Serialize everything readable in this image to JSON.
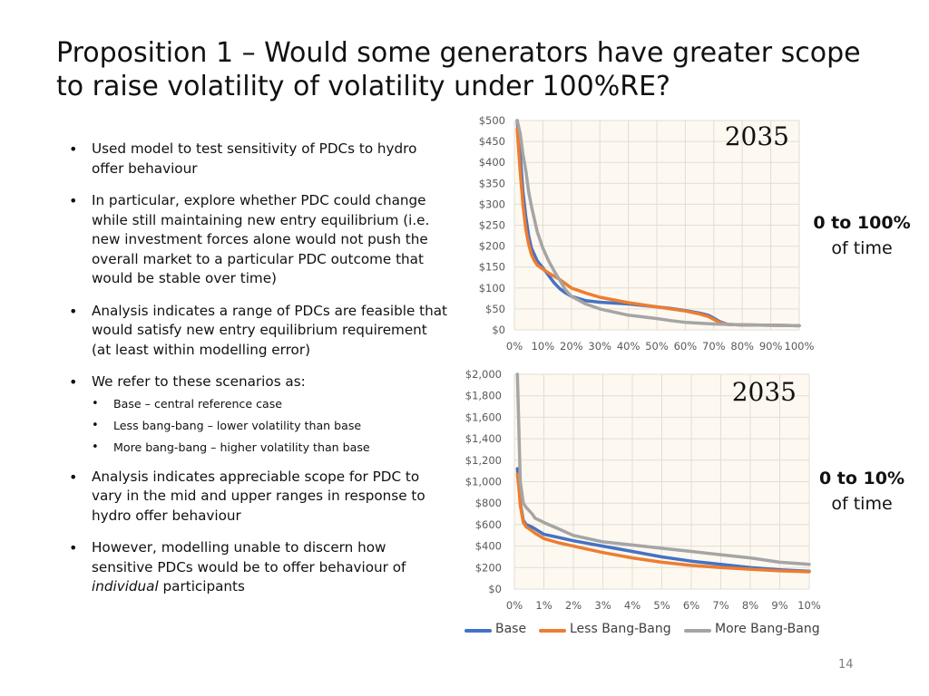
{
  "slide": {
    "title": "Proposition 1 – Would some generators have greater scope to raise volatility of volatility under 100%RE?",
    "bullets": {
      "b1": "Used model to test sensitivity of PDCs to hydro offer behaviour",
      "b2": "In particular, explore whether PDC could change while still maintaining new entry equilibrium (i.e. new investment forces alone would not push the overall market to a particular PDC outcome that would be stable over time)",
      "b3": "Analysis indicates a range of PDCs are feasible that would satisfy new entry equilibrium requirement (at least within modelling error)",
      "b4": "We refer to these scenarios as:",
      "b4_sub1": "Base – central reference case",
      "b4_sub2": "Less bang-bang – lower volatility than base",
      "b4_sub3": "More bang-bang – higher volatility than base",
      "b5": "Analysis indicates appreciable scope for PDC to vary in the mid and upper ranges in response to hydro offer behaviour",
      "b6_pre": "However, modelling unable to discern how sensitive PDCs would be to offer behaviour of ",
      "b6_em": "individual",
      "b6_post": " participants"
    },
    "side_label_top": {
      "bold": "0 to 100%",
      "rest": "of time"
    },
    "side_label_bottom": {
      "bold": "0 to 10%",
      "rest": "of time"
    },
    "page_number": "14",
    "legend": [
      "Base",
      "Less Bang-Bang",
      "More Bang-Bang"
    ]
  },
  "colors": {
    "base": "#4472C4",
    "less_bang_bang": "#ED7D31",
    "more_bang_bang": "#A5A5A5",
    "plot_bg": "#FDF8F0",
    "grid": "#E2DED6",
    "tick_text": "#595959"
  },
  "chart_data": [
    {
      "type": "line",
      "year_label": "2035",
      "x_unit": "% of time",
      "xlim": [
        0,
        100
      ],
      "ylim": [
        0,
        500
      ],
      "x_ticks": [
        0,
        10,
        20,
        30,
        40,
        50,
        60,
        70,
        80,
        90,
        100
      ],
      "x_tick_labels": [
        "0%",
        "10%",
        "20%",
        "30%",
        "40%",
        "50%",
        "60%",
        "70%",
        "80%",
        "90%",
        "100%"
      ],
      "y_ticks": [
        0,
        50,
        100,
        150,
        200,
        250,
        300,
        350,
        400,
        450,
        500
      ],
      "y_tick_labels": [
        "$0",
        "$50",
        "$100",
        "$150",
        "$200",
        "$250",
        "$300",
        "$350",
        "$400",
        "$450",
        "$500"
      ],
      "grid": true,
      "legend_position": "bottom",
      "series": [
        {
          "name": "Base",
          "x": [
            1,
            2,
            3,
            4,
            5,
            6,
            8,
            10,
            12,
            14,
            16,
            18,
            20,
            25,
            30,
            40,
            50,
            55,
            60,
            65,
            68,
            70,
            72,
            74,
            75,
            80,
            90,
            100
          ],
          "y": [
            500,
            420,
            330,
            270,
            225,
            195,
            165,
            148,
            130,
            112,
            98,
            88,
            80,
            70,
            66,
            62,
            55,
            51,
            46,
            40,
            35,
            28,
            20,
            15,
            13,
            12,
            11,
            10
          ]
        },
        {
          "name": "Less Bang-Bang",
          "x": [
            1,
            2,
            3,
            4,
            5,
            6,
            7,
            8,
            10,
            12,
            14,
            16,
            18,
            20,
            25,
            30,
            40,
            50,
            55,
            60,
            65,
            68,
            70,
            72,
            74,
            75,
            80,
            90,
            100
          ],
          "y": [
            480,
            380,
            300,
            240,
            205,
            180,
            165,
            155,
            145,
            136,
            128,
            120,
            110,
            100,
            88,
            78,
            65,
            55,
            50,
            45,
            38,
            32,
            25,
            18,
            14,
            13,
            12,
            11,
            10
          ]
        },
        {
          "name": "More Bang-Bang",
          "x": [
            1,
            2,
            3,
            4,
            5,
            6,
            7,
            8,
            10,
            12,
            14,
            16,
            18,
            20,
            25,
            30,
            40,
            50,
            55,
            60,
            65,
            70,
            75,
            80,
            90,
            100
          ],
          "y": [
            500,
            470,
            420,
            380,
            330,
            295,
            265,
            235,
            195,
            165,
            140,
            118,
            95,
            80,
            62,
            50,
            35,
            27,
            22,
            18,
            16,
            14,
            13,
            12,
            11,
            10
          ]
        }
      ]
    },
    {
      "type": "line",
      "year_label": "2035",
      "x_unit": "% of time",
      "xlim": [
        0,
        10
      ],
      "ylim": [
        0,
        2000
      ],
      "x_ticks": [
        0,
        1,
        2,
        3,
        4,
        5,
        6,
        7,
        8,
        9,
        10
      ],
      "x_tick_labels": [
        "0%",
        "1%",
        "2%",
        "3%",
        "4%",
        "5%",
        "6%",
        "7%",
        "8%",
        "9%",
        "10%"
      ],
      "y_ticks": [
        0,
        200,
        400,
        600,
        800,
        1000,
        1200,
        1400,
        1600,
        1800,
        2000
      ],
      "y_tick_labels": [
        "$0",
        "$200",
        "$400",
        "$600",
        "$800",
        "$1,000",
        "$1,200",
        "$1,400",
        "$1,600",
        "$1,800",
        "$2,000"
      ],
      "grid": true,
      "legend_position": "bottom",
      "series": [
        {
          "name": "Base",
          "x": [
            0.1,
            0.15,
            0.2,
            0.3,
            0.4,
            0.5,
            0.7,
            1,
            1.5,
            2,
            3,
            4,
            5,
            6,
            7,
            8,
            9,
            10
          ],
          "y": [
            1120,
            1000,
            800,
            640,
            600,
            590,
            560,
            510,
            480,
            450,
            400,
            350,
            300,
            260,
            230,
            200,
            180,
            165
          ]
        },
        {
          "name": "Less Bang-Bang",
          "x": [
            0.1,
            0.15,
            0.2,
            0.3,
            0.4,
            0.5,
            0.7,
            1,
            1.5,
            2,
            3,
            4,
            5,
            6,
            7,
            8,
            9,
            10
          ],
          "y": [
            1070,
            950,
            780,
            620,
            580,
            560,
            520,
            470,
            430,
            400,
            340,
            290,
            250,
            220,
            200,
            185,
            170,
            160
          ]
        },
        {
          "name": "More Bang-Bang",
          "x": [
            0.1,
            0.15,
            0.2,
            0.3,
            0.4,
            0.5,
            0.6,
            0.7,
            1,
            1.5,
            2,
            3,
            4,
            5,
            6,
            7,
            8,
            9,
            10
          ],
          "y": [
            2000,
            1500,
            1000,
            800,
            760,
            730,
            700,
            660,
            620,
            560,
            500,
            440,
            410,
            380,
            350,
            320,
            290,
            250,
            230
          ]
        }
      ]
    }
  ]
}
